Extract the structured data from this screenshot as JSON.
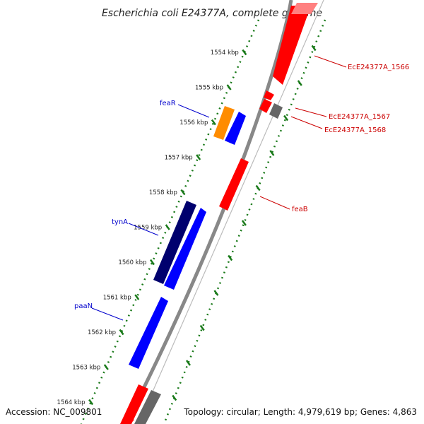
{
  "title": "Escherichia coli E24377A, complete genome",
  "footer": {
    "accession": "Accession: NC_009801",
    "summary": "Topology: circular; Length: 4,979,619 bp; Genes: 4,863"
  },
  "colors": {
    "forward_gene": "#ff0000",
    "reverse_gene": "#0000ff",
    "tick": "#1a7a1a",
    "backbone": "#888888",
    "label_forward": "#cc0000",
    "label_reverse": "#0000cc"
  },
  "ticks": [
    {
      "label": "1554 kbp"
    },
    {
      "label": "1555 kbp"
    },
    {
      "label": "1556 kbp"
    },
    {
      "label": "1557 kbp"
    },
    {
      "label": "1558 kbp"
    },
    {
      "label": "1559 kbp"
    },
    {
      "label": "1560 kbp"
    },
    {
      "label": "1561 kbp"
    },
    {
      "label": "1562 kbp"
    },
    {
      "label": "1563 kbp"
    },
    {
      "label": "1564 kbp"
    }
  ],
  "gene_labels": [
    {
      "name": "EcE24377A_1566"
    },
    {
      "name": "EcE24377A_1567"
    },
    {
      "name": "EcE24377A_1568"
    },
    {
      "name": "feaB"
    },
    {
      "name": "feaR"
    },
    {
      "name": "tynA"
    },
    {
      "name": "paaN"
    }
  ]
}
